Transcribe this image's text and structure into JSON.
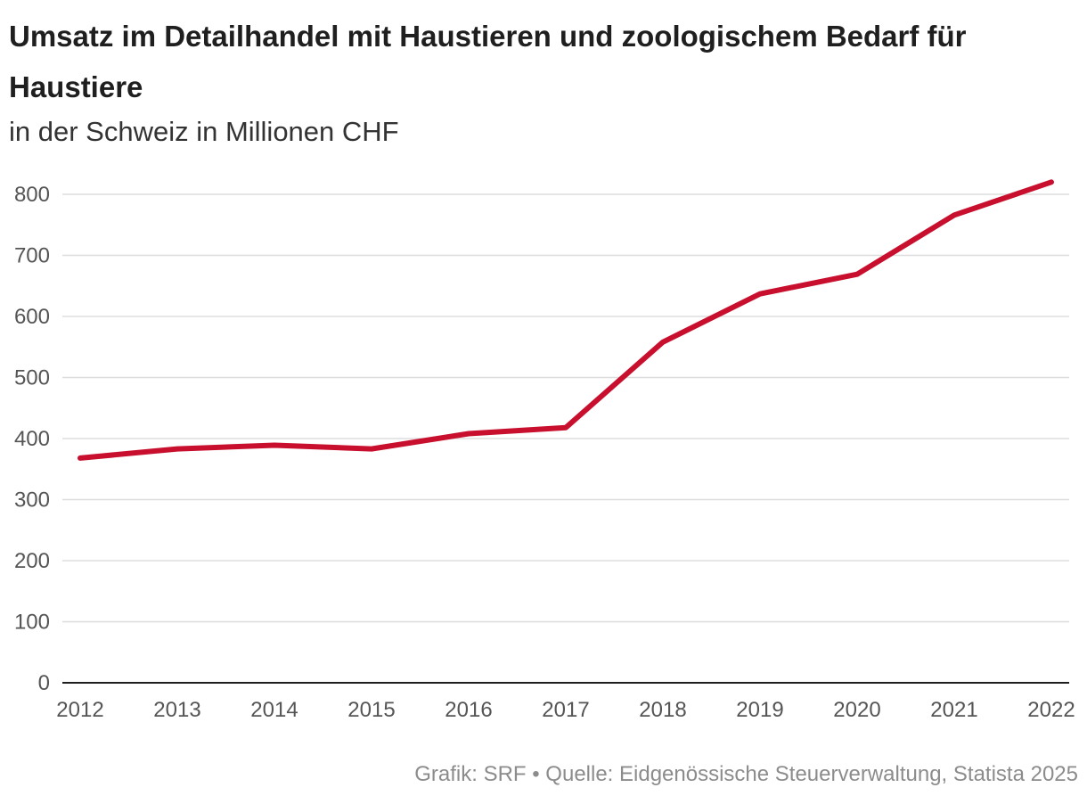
{
  "title": "Umsatz im Detailhandel mit Haustieren und zoologischem Bedarf für Haustiere",
  "subtitle": "in der Schweiz in Millionen CHF",
  "source": "Grafik: SRF • Quelle: Eidgenössische Steuerverwaltung, Statista 2025",
  "colors": {
    "line": "#c8102e",
    "grid": "#dddddd",
    "axis": "#1f1f1f"
  },
  "chart_data": {
    "type": "line",
    "title": "Umsatz im Detailhandel mit Haustieren und zoologischem Bedarf für Haustiere",
    "subtitle": "in der Schweiz in Millionen CHF",
    "x": [
      "2012",
      "2013",
      "2014",
      "2015",
      "2016",
      "2017",
      "2018",
      "2019",
      "2020",
      "2021",
      "2022"
    ],
    "series": [
      {
        "values": [
          368,
          383,
          389,
          383,
          408,
          418,
          558,
          637,
          669,
          766,
          820
        ]
      }
    ],
    "y_ticks": [
      0,
      100,
      200,
      300,
      400,
      500,
      600,
      700,
      800
    ],
    "ylim": [
      0,
      800
    ],
    "xlabel": "",
    "ylabel": "",
    "grid": true,
    "legend": "none"
  }
}
